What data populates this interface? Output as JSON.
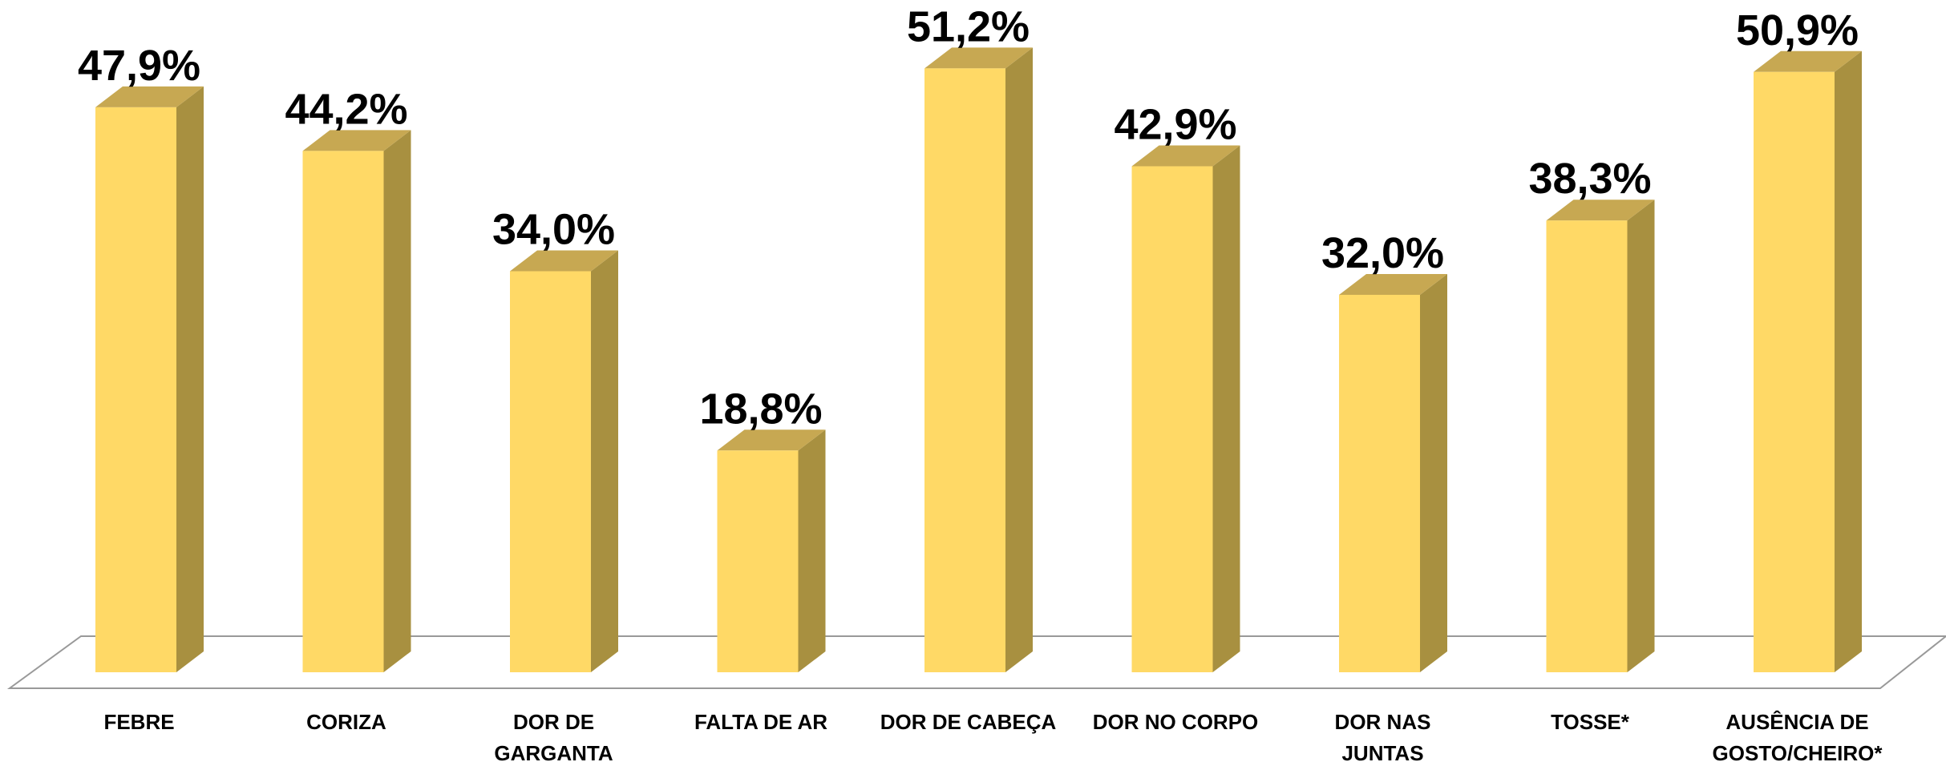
{
  "chart_data": {
    "type": "bar3d",
    "categories": [
      "FEBRE",
      "CORIZA",
      "DOR DE\nGARGANTA",
      "FALTA DE AR",
      "DOR DE CABEÇA",
      "DOR NO CORPO",
      "DOR NAS\nJUNTAS",
      "TOSSE*",
      "AUSÊNCIA DE\nGOSTO/CHEIRO*"
    ],
    "values": [
      47.9,
      44.2,
      34.0,
      18.8,
      51.2,
      42.9,
      32.0,
      38.3,
      50.9
    ],
    "value_labels": [
      "47,9%",
      "44,2%",
      "34,0%",
      "18,8%",
      "51,2%",
      "42,9%",
      "32,0%",
      "38,3%",
      "50,9%"
    ],
    "color": "#FFD966"
  }
}
